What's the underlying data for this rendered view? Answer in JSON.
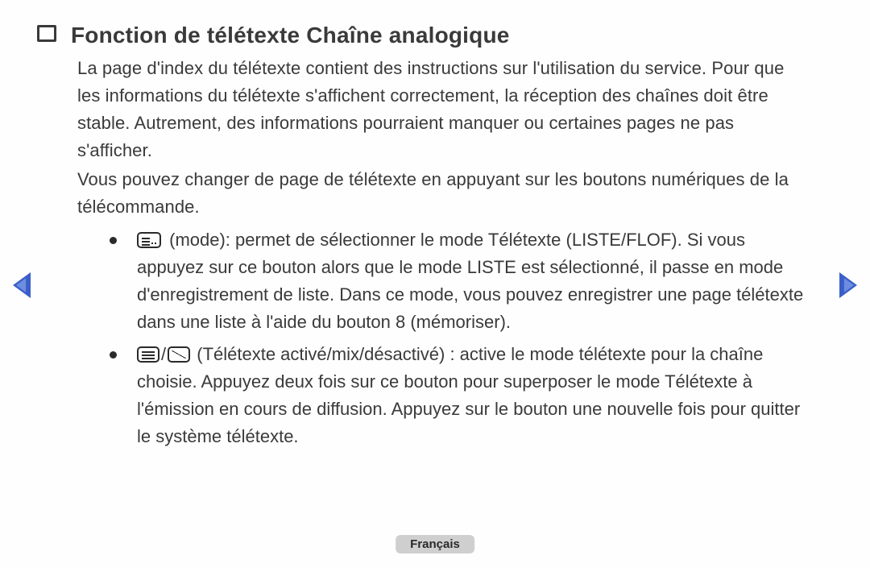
{
  "title": "Fonction de télétexte Chaîne analogique",
  "paragraphs": [
    "La page d'index du télétexte contient des instructions sur l'utilisation du service. Pour que les informations du télétexte s'affichent correctement, la réception des chaînes doit être stable. Autrement, des informations pourraient manquer ou certaines pages ne pas s'afficher.",
    "Vous pouvez changer de page de télétexte en appuyant sur les boutons numériques de la télécommande."
  ],
  "bullets": [
    {
      "icon": "mode",
      "text": " (mode): permet de sélectionner le mode Télétexte (LISTE/FLOF). Si vous appuyez sur ce bouton alors que le mode LISTE est sélectionné, il passe en mode d'enregistrement de liste. Dans ce mode, vous pouvez enregistrer une page télétexte dans une liste à l'aide du bouton 8 (mémoriser)."
    },
    {
      "icon": "ttx",
      "text": " (Télétexte activé/mix/désactivé) : active le mode télétexte pour la chaîne choisie. Appuyez deux fois sur ce bouton pour superposer le mode Télétexte à l'émission en cours de diffusion. Appuyez sur le bouton une nouvelle fois pour quitter le système télétexte."
    }
  ],
  "language_label": "Français",
  "colors": {
    "text": "#3a3a3a",
    "background": "#fefefe",
    "arrow": "#3a5fc8",
    "badge_bg": "#cfcfcf"
  }
}
